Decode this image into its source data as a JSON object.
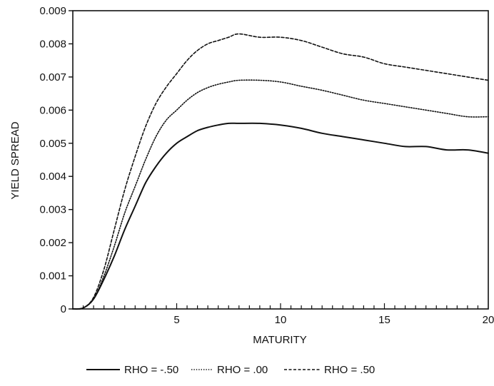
{
  "chart_data": {
    "type": "line",
    "title": "",
    "xlabel": "MATURITY",
    "ylabel": "YIELD SPREAD",
    "xlim": [
      0,
      20
    ],
    "ylim": [
      0,
      0.009
    ],
    "x_ticks": [
      5,
      10,
      15,
      20
    ],
    "x_tick_labels": [
      "5",
      "10",
      "15",
      "20"
    ],
    "y_ticks": [
      0,
      0.001,
      0.002,
      0.003,
      0.004,
      0.005,
      0.006,
      0.007,
      0.008,
      0.009
    ],
    "y_tick_labels": [
      "0",
      "0.001",
      "0.002",
      "0.003",
      "0.004",
      "0.005",
      "0.006",
      "0.007",
      "0.008",
      "0.009"
    ],
    "grid": false,
    "legend_position": "bottom",
    "x": [
      0,
      0.5,
      1,
      1.5,
      2,
      2.5,
      3,
      3.5,
      4,
      4.5,
      5,
      5.5,
      6,
      6.5,
      7,
      7.5,
      8,
      9,
      10,
      11,
      12,
      13,
      14,
      15,
      16,
      17,
      18,
      19,
      20
    ],
    "series": [
      {
        "name": "RHO = -.50",
        "style": "solid",
        "values": [
          0,
          3e-05,
          0.0003,
          0.0009,
          0.0016,
          0.0024,
          0.0031,
          0.0038,
          0.0043,
          0.0047,
          0.005,
          0.0052,
          0.00538,
          0.00548,
          0.00555,
          0.0056,
          0.0056,
          0.0056,
          0.00555,
          0.00545,
          0.0053,
          0.0052,
          0.0051,
          0.005,
          0.0049,
          0.0049,
          0.0048,
          0.0048,
          0.0047
        ]
      },
      {
        "name": "RHO = .00",
        "style": "dotted",
        "values": [
          0,
          3e-05,
          0.0003,
          0.001,
          0.0019,
          0.0029,
          0.0037,
          0.0045,
          0.0052,
          0.0057,
          0.006,
          0.0063,
          0.00653,
          0.00668,
          0.00678,
          0.00685,
          0.0069,
          0.0069,
          0.00685,
          0.00672,
          0.0066,
          0.00645,
          0.0063,
          0.0062,
          0.0061,
          0.006,
          0.0059,
          0.0058,
          0.0058
        ]
      },
      {
        "name": "RHO = .50",
        "style": "dashed",
        "values": [
          0,
          3e-05,
          0.00035,
          0.0012,
          0.0024,
          0.0036,
          0.0046,
          0.0055,
          0.0062,
          0.0067,
          0.0071,
          0.0075,
          0.0078,
          0.008,
          0.0081,
          0.0082,
          0.0083,
          0.0082,
          0.0082,
          0.0081,
          0.0079,
          0.0077,
          0.0076,
          0.0074,
          0.0073,
          0.0072,
          0.0071,
          0.007,
          0.0069
        ]
      }
    ]
  },
  "colors": {
    "axis": "#111111",
    "series": "#111111",
    "background": "#ffffff"
  }
}
